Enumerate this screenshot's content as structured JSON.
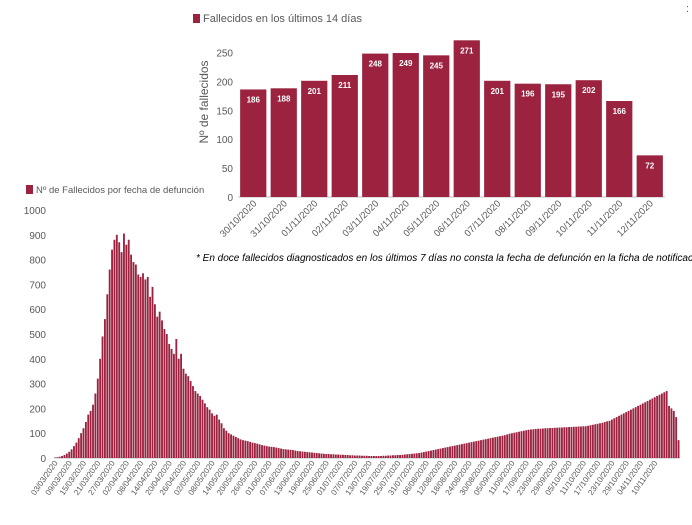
{
  "page": {
    "corner_mark": ":"
  },
  "charts": {
    "top": {
      "legend": "Fallecidos en los últimos 14 días",
      "color": "#9b2340",
      "ylabel": "Nº de fallecidos",
      "yticks": [
        0,
        50,
        100,
        150,
        200,
        250
      ],
      "ylim": [
        0,
        275
      ]
    },
    "bottom": {
      "legend": "Nº de Fallecidos por fecha de defunción",
      "color": "#9b2340",
      "yticks": [
        0,
        100,
        200,
        300,
        400,
        500,
        600,
        700,
        800,
        900,
        1000
      ],
      "ylim": [
        0,
        1000
      ],
      "xticks": [
        "03/03/2020",
        "09/03/2020",
        "15/03/2020",
        "21/03/2020",
        "27/03/2020",
        "02/04/2020",
        "08/04/2020",
        "14/04/2020",
        "20/04/2020",
        "26/04/2020",
        "02/05/2020",
        "08/05/2020",
        "14/05/2020",
        "20/05/2020",
        "26/05/2020",
        "01/06/2020",
        "07/06/2020",
        "13/06/2020",
        "19/06/2020",
        "25/06/2020",
        "01/07/2020",
        "07/07/2020",
        "13/07/2020",
        "19/07/2020",
        "25/07/2020",
        "31/07/2020",
        "06/08/2020",
        "12/08/2020",
        "18/08/2020",
        "24/08/2020",
        "30/08/2020",
        "05/09/2020",
        "11/09/2020",
        "17/09/2020",
        "23/09/2020",
        "29/09/2020",
        "05/10/2020",
        "11/10/2020",
        "17/10/2020",
        "23/10/2020",
        "29/10/2020",
        "04/11/2020",
        "10/11/2020"
      ]
    }
  },
  "note": "* En doce fallecidos diagnosticados en los últimos 7 días no consta la fecha de defunción en la ficha de notificación",
  "chart_data": [
    {
      "type": "bar",
      "categories": [
        "30/10/2020",
        "31/10/2020",
        "01/11/2020",
        "02/11/2020",
        "03/11/2020",
        "04/11/2020",
        "05/11/2020",
        "06/11/2020",
        "07/11/2020",
        "08/11/2020",
        "09/11/2020",
        "10/11/2020",
        "11/11/2020",
        "12/11/2020"
      ],
      "series": [
        {
          "name": "Fallecidos en los últimos 14 días",
          "values": [
            186,
            188,
            201,
            211,
            248,
            249,
            245,
            271,
            201,
            196,
            195,
            202,
            166,
            72
          ]
        }
      ],
      "ylabel": "Nº de fallecidos",
      "ylim": [
        0,
        275
      ],
      "grid": false,
      "legend": "top-left"
    },
    {
      "type": "bar",
      "x_start": "03/03/2020",
      "x_end": "12/11/2020",
      "series": [
        {
          "name": "Nº de Fallecidos por fecha de defunción",
          "values": [
            2,
            3,
            5,
            8,
            12,
            18,
            25,
            35,
            48,
            62,
            80,
            100,
            120,
            145,
            175,
            190,
            215,
            260,
            320,
            400,
            490,
            560,
            660,
            760,
            840,
            880,
            900,
            870,
            830,
            905,
            860,
            880,
            820,
            790,
            780,
            740,
            730,
            745,
            720,
            730,
            650,
            690,
            620,
            570,
            590,
            555,
            520,
            500,
            460,
            440,
            420,
            480,
            400,
            420,
            360,
            340,
            330,
            310,
            290,
            270,
            260,
            250,
            235,
            220,
            205,
            195,
            180,
            170,
            175,
            155,
            140,
            120,
            110,
            100,
            95,
            90,
            85,
            80,
            75,
            72,
            70,
            68,
            65,
            62,
            60,
            58,
            55,
            52,
            50,
            48,
            46,
            45,
            44,
            42,
            40,
            38,
            36,
            35,
            34,
            33,
            32,
            30,
            28,
            27,
            26,
            25,
            24,
            23,
            22,
            21,
            20,
            19,
            18,
            17,
            16,
            16,
            15,
            15,
            14,
            14,
            13,
            13,
            12,
            12,
            11,
            11,
            10,
            10,
            10,
            9,
            9,
            9,
            8,
            8,
            8,
            8,
            8,
            8,
            9,
            9,
            10,
            10,
            11,
            11,
            12,
            12,
            13,
            14,
            15,
            16,
            17,
            18,
            19,
            20,
            22,
            24,
            26,
            28,
            30,
            32,
            34,
            36,
            38,
            40,
            42,
            44,
            46,
            48,
            50,
            52,
            54,
            56,
            58,
            60,
            62,
            64,
            66,
            68,
            70,
            72,
            74,
            76,
            78,
            80,
            82,
            84,
            86,
            88,
            90,
            92,
            95,
            98,
            100,
            102,
            104,
            106,
            108,
            110,
            112,
            114,
            115,
            116,
            117,
            118,
            118,
            119,
            120,
            120,
            121,
            121,
            122,
            122,
            123,
            123,
            124,
            124,
            125,
            125,
            126,
            126,
            127,
            127,
            128,
            128,
            130,
            132,
            134,
            136,
            138,
            140,
            142,
            145,
            148,
            150,
            155,
            160,
            165,
            170,
            175,
            180,
            185,
            190,
            195,
            200,
            205,
            210,
            215,
            220,
            225,
            230,
            235,
            240,
            245,
            250,
            255,
            260,
            265,
            270,
            210,
            200,
            190,
            165,
            72
          ]
        }
      ],
      "ylim": [
        0,
        1000
      ],
      "grid": false,
      "legend": "top-left"
    }
  ]
}
